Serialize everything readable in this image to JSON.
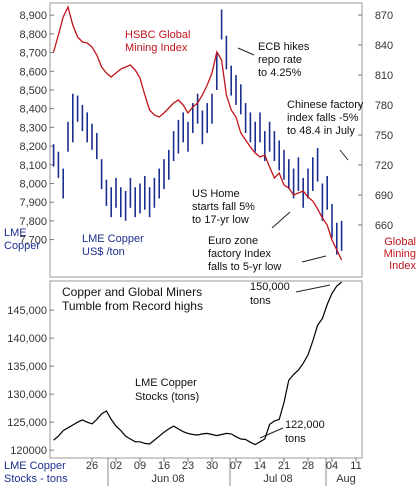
{
  "chart_data": [
    {
      "type": "hilo-line",
      "series": [
        {
          "type": "hilo",
          "color": "#1c2f8f",
          "high": [
            8210,
            8170,
            8080,
            8330,
            8480,
            8470,
            8420,
            8380,
            8320,
            8270,
            8130,
            8020,
            7980,
            8030,
            7980,
            7960,
            8030,
            7980,
            8000,
            8040,
            7980,
            8030,
            8080,
            8130,
            8180,
            8280,
            8340,
            8380,
            8330,
            8430,
            8480,
            8390,
            8430,
            8480,
            8700,
            8930,
            8790,
            8630,
            8580,
            8530,
            8430,
            8380,
            8330,
            8380,
            8280,
            8330,
            8280,
            8230,
            8180,
            8130,
            8080,
            8140,
            8030,
            8080,
            8140,
            8190,
            8000,
            8040,
            7890,
            7790,
            7800,
            null,
            null,
            null
          ],
          "low": [
            8090,
            8030,
            7920,
            8170,
            8220,
            8330,
            8280,
            8220,
            8180,
            8130,
            7970,
            7880,
            7820,
            7870,
            7820,
            7800,
            7870,
            7820,
            7840,
            7860,
            7820,
            7870,
            7920,
            7970,
            8020,
            8120,
            8160,
            8220,
            8170,
            8270,
            8320,
            8210,
            8270,
            8320,
            8500,
            8770,
            8610,
            8470,
            8420,
            8370,
            8270,
            8220,
            8170,
            8220,
            8120,
            8170,
            8120,
            8070,
            8020,
            7970,
            7920,
            7960,
            7870,
            7920,
            7960,
            8010,
            7800,
            7860,
            7710,
            7620,
            7640,
            null,
            null,
            null
          ]
        },
        {
          "type": "line",
          "color": "#c0141c",
          "axis": "y2",
          "values": [
            833,
            850,
            868,
            878,
            860,
            848,
            843,
            842,
            838,
            830,
            818,
            812,
            808,
            812,
            816,
            818,
            820,
            815,
            807,
            790,
            775,
            770,
            768,
            772,
            777,
            782,
            785,
            780,
            772,
            778,
            782,
            790,
            800,
            812,
            833,
            825,
            790,
            775,
            768,
            752,
            745,
            738,
            732,
            728,
            730,
            718,
            707,
            712,
            700,
            697,
            690,
            692,
            694,
            688,
            684,
            676,
            667,
            660,
            645,
            635,
            625,
            null,
            null,
            null
          ]
        }
      ],
      "ylim": [
        7500,
        8965
      ],
      "yticks": [
        {
          "value": 7700,
          "label": "7,700"
        },
        {
          "value": 7800,
          "label": "7,800"
        },
        {
          "value": 7900,
          "label": "7,900"
        },
        {
          "value": 8000,
          "label": "8,000"
        },
        {
          "value": 8100,
          "label": "8,100"
        },
        {
          "value": 8200,
          "label": "8,200"
        },
        {
          "value": 8300,
          "label": "8,300"
        },
        {
          "value": 8400,
          "label": "8,400"
        },
        {
          "value": 8500,
          "label": "8,500"
        },
        {
          "value": 8600,
          "label": "8,600"
        },
        {
          "value": 8700,
          "label": "8,700"
        },
        {
          "value": 8800,
          "label": "8,800"
        },
        {
          "value": 8900,
          "label": "8,900"
        }
      ],
      "y2lim": [
        608,
        882
      ],
      "y2ticks": [
        660,
        690,
        720,
        750,
        780,
        810,
        840,
        870
      ],
      "ylabel": [
        "LME",
        "Copper"
      ],
      "y2label": [
        "Global",
        "Mining",
        "Index"
      ],
      "annotations": [
        {
          "lines": [
            "HSBC Global",
            "Mining Index"
          ],
          "color": "#c0141c"
        },
        {
          "lines": [
            "ECB hikes",
            "repo rate",
            "to 4.25%"
          ],
          "color": "#111111"
        },
        {
          "lines": [
            "Chinese factory",
            "index falls -5%",
            "to 48.4 in July"
          ],
          "color": "#111111"
        },
        {
          "lines": [
            "US Home",
            "starts fall 5%",
            "to 17-yr low"
          ],
          "color": "#111111"
        },
        {
          "lines": [
            "Euro zone",
            "factory Index",
            "falls to 5-yr low"
          ],
          "color": "#111111"
        },
        {
          "lines": [
            "LME Copper",
            "US$ /ton"
          ],
          "color": "#1c2f8f"
        }
      ]
    },
    {
      "type": "line",
      "categories": [
        null,
        null,
        null,
        null,
        null,
        null,
        null,
        null,
        "26",
        null,
        null,
        null,
        null,
        "02",
        null,
        null,
        null,
        null,
        "09",
        null,
        null,
        null,
        null,
        "16",
        null,
        null,
        null,
        null,
        "23",
        null,
        null,
        null,
        null,
        "30",
        null,
        null,
        null,
        null,
        "07",
        null,
        null,
        null,
        null,
        "14",
        null,
        null,
        null,
        null,
        "21",
        null,
        null,
        null,
        null,
        "28",
        null,
        null,
        null,
        null,
        "04",
        null,
        null,
        null,
        null,
        "11"
      ],
      "months": [
        "Jun 08",
        "Jul 08",
        "Aug"
      ],
      "series": [
        {
          "color": "#000000",
          "values": [
            121800,
            122500,
            123500,
            124000,
            124500,
            125000,
            125400,
            125000,
            124700,
            125500,
            126500,
            127000,
            125500,
            124300,
            123500,
            122500,
            122000,
            121500,
            121500,
            121200,
            121100,
            121800,
            122500,
            123200,
            123800,
            124300,
            123800,
            123300,
            123000,
            122800,
            122700,
            122900,
            123000,
            122800,
            122600,
            122800,
            123000,
            122900,
            122400,
            122000,
            121900,
            121400,
            121000,
            121500,
            122000,
            124600,
            125200,
            125500,
            128500,
            132500,
            133500,
            134300,
            135500,
            137000,
            139500,
            142300,
            143500,
            146000,
            148000,
            149300,
            150000,
            null,
            null,
            null
          ]
        }
      ],
      "ylim": [
        118600,
        150200
      ],
      "yticks": [
        {
          "value": 120000,
          "label": "120000"
        },
        {
          "value": 125000,
          "label": "125,000"
        },
        {
          "value": 130000,
          "label": "130,000"
        },
        {
          "value": 135000,
          "label": "135,000"
        },
        {
          "value": 140000,
          "label": "140,000"
        },
        {
          "value": 145000,
          "label": "145,000"
        }
      ],
      "xlabel": [
        "LME Copper",
        "Stocks - tons"
      ],
      "annotations": [
        {
          "lines": [
            "Copper and Global Miners",
            "Tumble from Record highs"
          ],
          "color": "#111111"
        },
        {
          "lines": [
            "150,000",
            "tons"
          ],
          "color": "#111111"
        },
        {
          "lines": [
            "LME Copper",
            "Stocks (tons)"
          ],
          "color": "#111111"
        },
        {
          "lines": [
            "122,000",
            "tons"
          ],
          "color": "#111111"
        }
      ]
    }
  ]
}
